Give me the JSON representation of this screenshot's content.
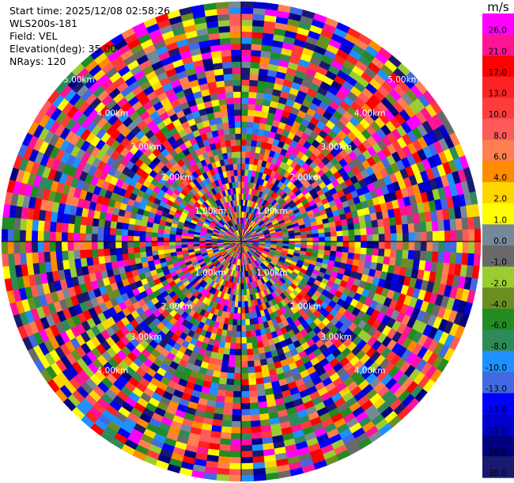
{
  "info": {
    "start_time": "Start time: 2025/12/08 02:58:26",
    "instrument": "WLS200s-181",
    "field": "Field: VEL",
    "elevation": "Elevation(deg): 35.00",
    "nrays": "NRays: 120"
  },
  "colorbar": {
    "unit": "m/s",
    "ticks": [
      "26.0",
      "21.0",
      "17.0",
      "13.0",
      "10.0",
      "8.0",
      "6.0",
      "4.0",
      "2.0",
      "1.0",
      "0.0",
      "-1.0",
      "-2.0",
      "-4.0",
      "-6.0",
      "-8.0",
      "-10.0",
      "-13.0",
      "-17.0",
      "-21.0",
      "-26.0",
      "-30.0"
    ],
    "colors": [
      "#ff00ff",
      "#ff1493",
      "#ff0000",
      "#ff2222",
      "#ff3c3c",
      "#ff5a5a",
      "#ff7f50",
      "#ff8c00",
      "#ffd700",
      "#ffff00",
      "#778899",
      "#696969",
      "#9acd32",
      "#6b8e23",
      "#228b22",
      "#2e8b57",
      "#1e90ff",
      "#4169e1",
      "#0000ff",
      "#0000cd",
      "#000080",
      "#191970"
    ]
  },
  "chart_data": {
    "type": "heatmap",
    "projection": "polar-ppi",
    "field": "VEL",
    "unit": "m/s",
    "nrays": 120,
    "range_ring_labels": [
      "1.00km",
      "1.00km",
      "1.00km",
      "1.00km",
      "2.00km",
      "2.00km",
      "2.00km",
      "2.00km",
      "3.00km",
      "3.00km",
      "3.00km",
      "3.00km",
      "4.00km",
      "4.00km",
      "4.00km",
      "4.00km",
      "5.00km",
      "5.00km"
    ],
    "vmin": -30.0,
    "vmax": 30.0
  }
}
